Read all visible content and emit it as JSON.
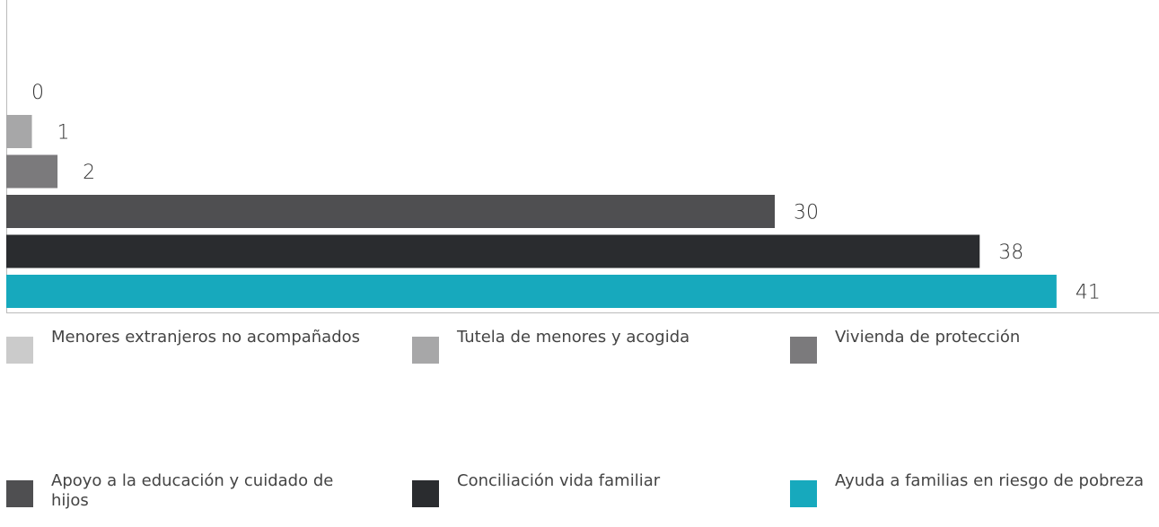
{
  "chart_data": {
    "type": "bar",
    "orientation": "horizontal",
    "xlim": [
      0,
      45
    ],
    "series": [
      {
        "name": "Menores extranjeros no acompañados",
        "color": "#cbcbcb",
        "values": [
          0
        ]
      },
      {
        "name": "Tutela de menores y acogida",
        "color": "#a7a7a8",
        "values": [
          1
        ]
      },
      {
        "name": "Vivienda de protección",
        "color": "#7b7a7c",
        "values": [
          2
        ]
      },
      {
        "name": "Apoyo a la educación y cuidado de hijos",
        "color": "#4f4f51",
        "values": [
          30
        ]
      },
      {
        "name": "Conciliación vida familiar",
        "color": "#2a2c2f",
        "values": [
          38
        ]
      },
      {
        "name": "Ayuda a familias en riesgo de pobreza",
        "color": "#17a9bd",
        "values": [
          41
        ]
      }
    ]
  }
}
